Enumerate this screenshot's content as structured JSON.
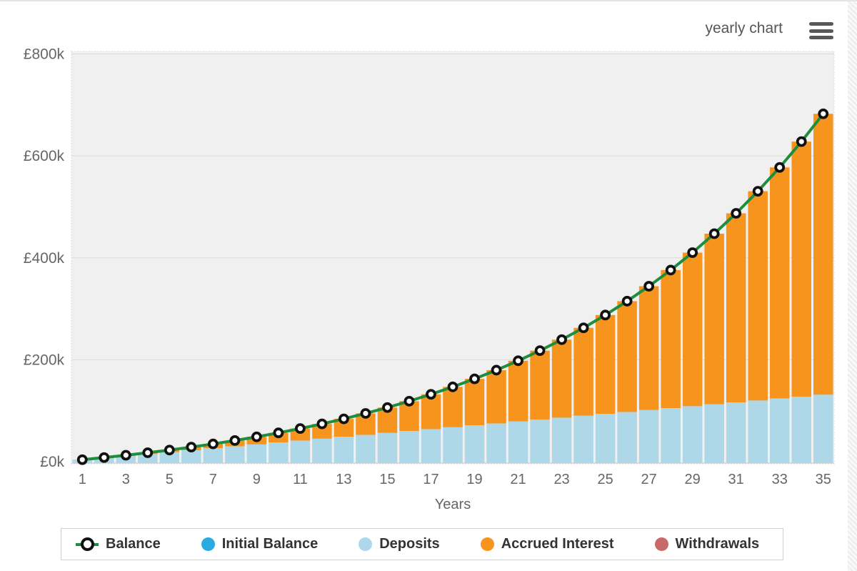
{
  "header": {
    "view_label": "yearly chart"
  },
  "colors": {
    "plot_background": "#f0f0f0",
    "gridline": "#dcdcdc",
    "plot_border": "#dddddd",
    "axis_text": "#666666",
    "balance_line": "#1e8e3e",
    "marker_fill": "#ffffff",
    "marker_stroke": "#111111",
    "deposits": "#aed7e8",
    "accrued_interest": "#f7941e",
    "initial_balance": "#29abe2",
    "withdrawals": "#c96a6a",
    "legend_text": "#333333",
    "menu_icon": "#58595b"
  },
  "chart_data": {
    "type": "bar",
    "subtype": "stacked-bars-with-line-overlay",
    "title": "",
    "xlabel": "Years",
    "ylabel": "",
    "x": [
      1,
      2,
      3,
      4,
      5,
      6,
      7,
      8,
      9,
      10,
      11,
      12,
      13,
      14,
      15,
      16,
      17,
      18,
      19,
      20,
      21,
      22,
      23,
      24,
      25,
      26,
      27,
      28,
      29,
      30,
      31,
      32,
      33,
      34,
      35
    ],
    "x_tick_labels": [
      "1",
      "3",
      "5",
      "7",
      "9",
      "11",
      "13",
      "15",
      "17",
      "19",
      "21",
      "23",
      "25",
      "27",
      "29",
      "31",
      "33",
      "35"
    ],
    "y_tick_labels": [
      "£0k",
      "£200k",
      "£400k",
      "£600k",
      "£800k"
    ],
    "y_tick_values_k": [
      0,
      200,
      400,
      600,
      800
    ],
    "ylim_k": [
      0,
      800
    ],
    "unit": "GBP thousands",
    "grid": "horizontal",
    "legend_position": "bottom",
    "series": [
      {
        "name": "Balance",
        "render": "line-with-markers",
        "values_k": [
          3.9,
          8.1,
          12.6,
          17.5,
          22.8,
          28.6,
          34.8,
          41.5,
          48.7,
          56.5,
          65.0,
          74.1,
          84.0,
          94.7,
          106.2,
          118.7,
          132.2,
          146.8,
          162.5,
          179.6,
          198.0,
          217.9,
          239.4,
          262.6,
          287.7,
          314.9,
          344.2,
          375.9,
          410.2,
          447.3,
          487.3,
          530.6,
          577.4,
          628.0,
          682.6
        ]
      },
      {
        "name": "Deposits",
        "render": "bar-stack-bottom",
        "values_k": [
          3.8,
          7.5,
          11.3,
          15.0,
          18.8,
          22.5,
          26.3,
          30.0,
          33.8,
          37.5,
          41.3,
          45.0,
          48.8,
          52.5,
          56.3,
          60.0,
          63.8,
          67.5,
          71.3,
          75.0,
          78.8,
          82.5,
          86.3,
          90.0,
          93.8,
          97.5,
          101.3,
          105.0,
          108.8,
          112.5,
          116.3,
          120.0,
          123.8,
          127.5,
          131.3
        ]
      },
      {
        "name": "Accrued Interest",
        "render": "bar-stack-top",
        "values_k": [
          0.1,
          0.6,
          1.3,
          2.5,
          4.0,
          6.1,
          8.5,
          11.5,
          14.9,
          19.0,
          23.7,
          29.1,
          35.2,
          42.2,
          49.9,
          58.7,
          68.4,
          79.3,
          91.2,
          104.6,
          119.2,
          135.4,
          153.1,
          172.6,
          193.9,
          217.4,
          242.9,
          270.9,
          301.4,
          334.8,
          371.0,
          410.6,
          453.6,
          500.5,
          551.3
        ]
      }
    ]
  },
  "legend": {
    "items": [
      {
        "label": "Balance",
        "icon": "line-marker",
        "color": "#1e8e3e"
      },
      {
        "label": "Initial Balance",
        "icon": "dot",
        "color": "#29abe2"
      },
      {
        "label": "Deposits",
        "icon": "dot",
        "color": "#aed7e8"
      },
      {
        "label": "Accrued Interest",
        "icon": "dot",
        "color": "#f7941e"
      },
      {
        "label": "Withdrawals",
        "icon": "dot",
        "color": "#c96a6a"
      }
    ]
  }
}
